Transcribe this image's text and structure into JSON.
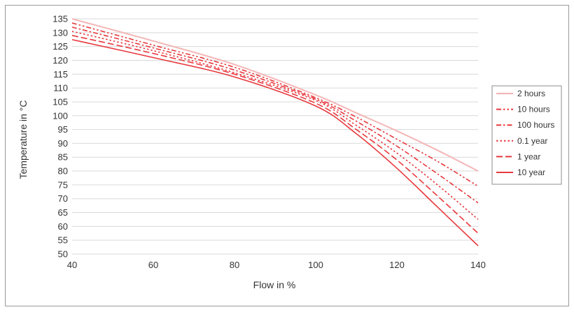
{
  "chart_data": {
    "type": "line",
    "xlabel": "Flow in %",
    "ylabel": "Temperature in °C",
    "xlim": [
      40,
      140
    ],
    "ylim": [
      50,
      135
    ],
    "xticks": [
      40,
      60,
      80,
      100,
      120,
      140
    ],
    "yticks": [
      50,
      55,
      60,
      65,
      70,
      75,
      80,
      85,
      90,
      95,
      100,
      105,
      110,
      115,
      120,
      125,
      130,
      135
    ],
    "grid": true,
    "legend_position": "right",
    "series": [
      {
        "name": "2 hours",
        "color": "#f4b6b6",
        "dash": "solid",
        "x": [
          40,
          60,
          80,
          100,
          110,
          120,
          130,
          140
        ],
        "y": [
          135,
          127,
          118.5,
          107.5,
          101,
          94.5,
          87.5,
          80
        ]
      },
      {
        "name": "10 hours",
        "color": "#e8383d",
        "dash": "dash-dot-dot",
        "x": [
          40,
          60,
          80,
          100,
          110,
          120,
          130,
          140
        ],
        "y": [
          133.5,
          125.5,
          117.5,
          106.5,
          99.5,
          91.5,
          83.5,
          74.5
        ]
      },
      {
        "name": "100 hours",
        "color": "#e8383d",
        "dash": "dash-dot",
        "x": [
          40,
          60,
          80,
          100,
          110,
          120,
          130,
          140
        ],
        "y": [
          132,
          124.5,
          116.5,
          106,
          98,
          89,
          79,
          68.5
        ]
      },
      {
        "name": "0.1 year",
        "color": "#e8383d",
        "dash": "dot",
        "x": [
          40,
          60,
          80,
          100,
          110,
          120,
          130,
          140
        ],
        "y": [
          130.5,
          123.5,
          115.5,
          105.5,
          96.5,
          86.5,
          75,
          62.5
        ]
      },
      {
        "name": "1 year",
        "color": "#e8383d",
        "dash": "dash",
        "x": [
          40,
          60,
          80,
          100,
          110,
          120,
          130,
          140
        ],
        "y": [
          129,
          122.5,
          115,
          104.5,
          95,
          84,
          71,
          57.5
        ]
      },
      {
        "name": "10 year",
        "color": "#e8383d",
        "dash": "solid",
        "x": [
          40,
          60,
          80,
          100,
          110,
          120,
          130,
          140
        ],
        "y": [
          127.5,
          121,
          114,
          103.5,
          93.5,
          81,
          67,
          53
        ]
      }
    ]
  }
}
